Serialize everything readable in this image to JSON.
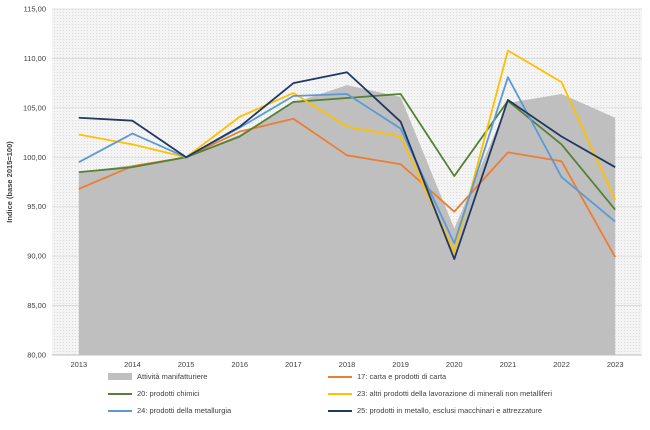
{
  "chart_data": {
    "type": "line",
    "ylabel": "Indice (base 2015=100)",
    "xlabel": "",
    "ylim": [
      80,
      115
    ],
    "ytick_labels": [
      "80,00",
      "85,00",
      "90,00",
      "95,00",
      "100,00",
      "105,00",
      "110,00",
      "115,00"
    ],
    "yticks": [
      80,
      85,
      90,
      95,
      100,
      105,
      110,
      115
    ],
    "categories": [
      "2013",
      "2014",
      "2015",
      "2016",
      "2017",
      "2018",
      "2019",
      "2020",
      "2021",
      "2022",
      "2023"
    ],
    "grid": "horizontal",
    "legend_position": "bottom",
    "area": {
      "name": "Attività manifatturiere",
      "color": "#bfbfbf",
      "values": [
        98.5,
        99.2,
        100.0,
        102.3,
        105.5,
        107.3,
        106.1,
        92.8,
        105.5,
        106.4,
        104.0
      ]
    },
    "series": [
      {
        "name": "17: carta e prodotti di carta",
        "color": "#ed7d31",
        "values": [
          96.8,
          99.1,
          100.0,
          102.6,
          103.9,
          100.2,
          99.3,
          94.5,
          100.5,
          99.6,
          89.9
        ]
      },
      {
        "name": "20: prodotti chimici",
        "color": "#548235",
        "values": [
          98.5,
          99.0,
          100.0,
          102.1,
          105.6,
          106.0,
          106.4,
          98.1,
          105.7,
          101.3,
          94.7
        ]
      },
      {
        "name": "23: altri prodotti della lavorazione di minerali non metalliferi",
        "color": "#ffc000",
        "values": [
          102.3,
          101.3,
          100.0,
          104.1,
          106.5,
          103.1,
          102.1,
          90.4,
          110.8,
          107.6,
          95.7
        ]
      },
      {
        "name": "24: prodotti della metallurgia",
        "color": "#5b9bd5",
        "values": [
          99.5,
          102.4,
          100.0,
          103.0,
          106.2,
          106.4,
          102.9,
          91.3,
          108.1,
          98.0,
          93.5
        ]
      },
      {
        "name": "25: prodotti in metallo, esclusi macchinari e attrezzature",
        "color": "#203864",
        "values": [
          104.0,
          103.7,
          100.0,
          103.1,
          107.5,
          108.6,
          103.6,
          89.7,
          105.8,
          102.1,
          99.0
        ]
      }
    ]
  }
}
